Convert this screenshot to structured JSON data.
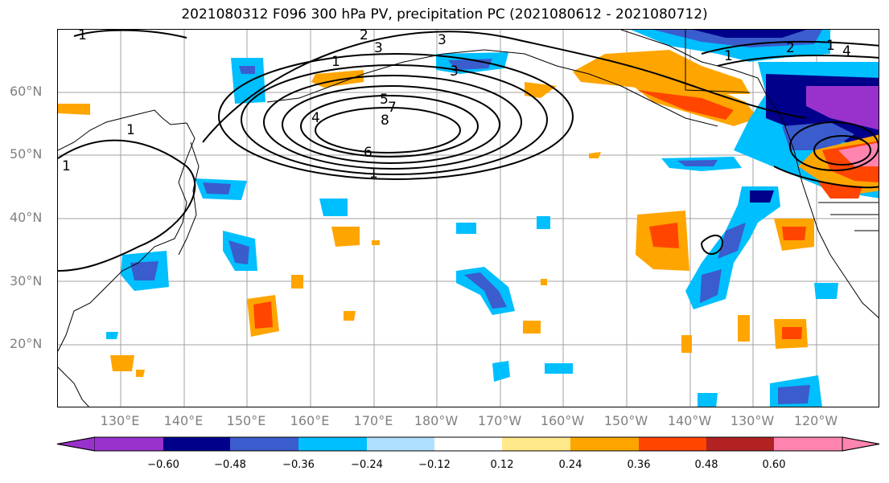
{
  "title": "2021080312 F096 300 hPa PV, precipitation PC (2021080612 - 2021080712)",
  "y_labels": [
    "60°N",
    "50°N",
    "40°N",
    "30°N",
    "20°N"
  ],
  "x_labels": [
    "130°E",
    "140°E",
    "150°E",
    "160°E",
    "170°E",
    "180°W",
    "170°W",
    "160°W",
    "150°W",
    "140°W",
    "130°W",
    "120°W"
  ],
  "colorbar": {
    "ticks": [
      "−0.60",
      "−0.48",
      "−0.36",
      "−0.24",
      "−0.12",
      "0.12",
      "0.24",
      "0.36",
      "0.48",
      "0.60"
    ],
    "colors": [
      "#9932cc",
      "#00008b",
      "#3a5ccc",
      "#00bfff",
      "#b0e0ff",
      "#ffffff",
      "#ffe98a",
      "#ffa500",
      "#ff4500",
      "#b22222",
      "#ff85b0"
    ]
  },
  "contour_labels": [
    "1",
    "2",
    "3",
    "3",
    "3",
    "1",
    "4",
    "5",
    "7",
    "8",
    "6",
    "1",
    "1",
    "1",
    "2",
    "1",
    "1",
    "4"
  ]
}
